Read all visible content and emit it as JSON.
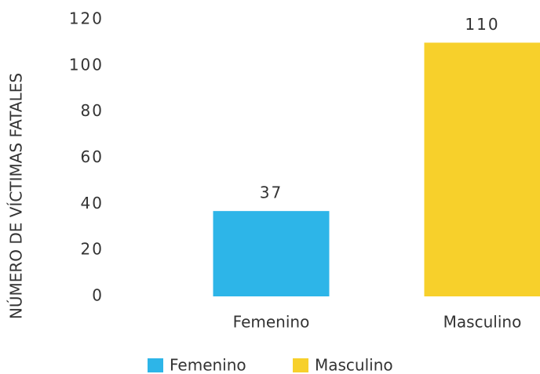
{
  "chart_data": {
    "type": "bar",
    "y_axis_label": "NÚMERO DE VÍCTIMAS FATALES",
    "categories": [
      "Femenino",
      "Masculino"
    ],
    "values": [
      37,
      110
    ],
    "colors": [
      "#2db5e8",
      "#f7d02b"
    ],
    "ylim": [
      0,
      120
    ],
    "yticks": [
      0,
      20,
      40,
      60,
      80,
      100,
      120
    ],
    "legend": "bottom"
  }
}
